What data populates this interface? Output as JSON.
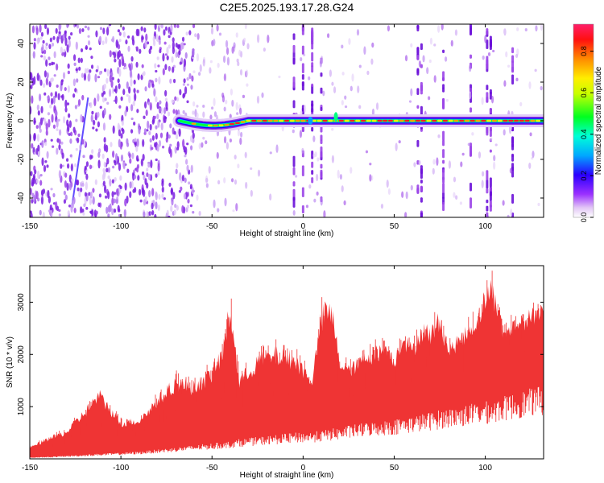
{
  "title": "C2E5.2025.193.17.28.G24",
  "chart_data": [
    {
      "type": "heatmap",
      "xlabel": "Height of straight line (km)",
      "ylabel": "Frequency (Hz)",
      "xlim": [
        -150,
        132
      ],
      "ylim": [
        -50,
        50
      ],
      "xticks": [
        "-150",
        "-100",
        "-50",
        "0",
        "50",
        "100"
      ],
      "yticks": [
        "-40",
        "-20",
        "0",
        "20",
        "40"
      ],
      "colorbar": {
        "label": "Normalized spectral amplitude",
        "range": [
          0,
          0.93
        ],
        "ticks": [
          "0.0",
          "0.2",
          "0.4",
          "0.6",
          "0.8"
        ],
        "colormap": [
          "#ffffff",
          "#e8c8f5",
          "#8a2be2",
          "#2000ff",
          "#00b0ff",
          "#00ffd0",
          "#00ff00",
          "#ffff00",
          "#ff8000",
          "#ff0000",
          "#ff1f6a"
        ]
      },
      "ridge": {
        "frequency_hz": 0,
        "x_start": -68,
        "x_end": 132,
        "peak_amplitude": 0.85
      },
      "vertical_streaks_x": [
        -5,
        0,
        5,
        10,
        63,
        65,
        77,
        92,
        101,
        103,
        115
      ]
    },
    {
      "type": "line",
      "xlabel": "Height of straight line (km)",
      "ylabel": "SNR (10 * v/v)",
      "xlim": [
        -150,
        132
      ],
      "ylim": [
        0,
        3700
      ],
      "xticks": [
        "-150",
        "-100",
        "-50",
        "0",
        "50",
        "100"
      ],
      "yticks": [
        "1000",
        "2000",
        "3000"
      ],
      "color": "#ef3434",
      "envelope": {
        "x": [
          -150,
          -140,
          -130,
          -120,
          -112,
          -100,
          -90,
          -80,
          -70,
          -60,
          -50,
          -44,
          -40,
          -35,
          -25,
          -15,
          -5,
          5,
          10,
          13,
          16,
          20,
          25,
          35,
          45,
          50,
          55,
          60,
          65,
          70,
          75,
          80,
          85,
          90,
          95,
          100,
          103,
          106,
          110,
          115,
          120,
          125,
          132
        ],
        "upper": [
          250,
          450,
          600,
          1050,
          1450,
          800,
          850,
          1300,
          1700,
          1600,
          1900,
          2400,
          3400,
          1700,
          2150,
          2300,
          2200,
          1700,
          3100,
          3300,
          3200,
          2100,
          1900,
          2200,
          2400,
          2100,
          2650,
          2300,
          2800,
          2700,
          3000,
          2300,
          2500,
          2700,
          2900,
          3500,
          3700,
          3400,
          2600,
          2800,
          2900,
          3000,
          3200
        ],
        "lower": [
          30,
          40,
          60,
          80,
          100,
          120,
          140,
          180,
          220,
          260,
          300,
          320,
          340,
          380,
          420,
          460,
          500,
          520,
          540,
          560,
          580,
          600,
          640,
          700,
          740,
          760,
          800,
          820,
          860,
          900,
          940,
          980,
          1000,
          1040,
          1080,
          1100,
          1120,
          1150,
          1200,
          1250,
          1300,
          1350,
          1400
        ]
      }
    }
  ]
}
